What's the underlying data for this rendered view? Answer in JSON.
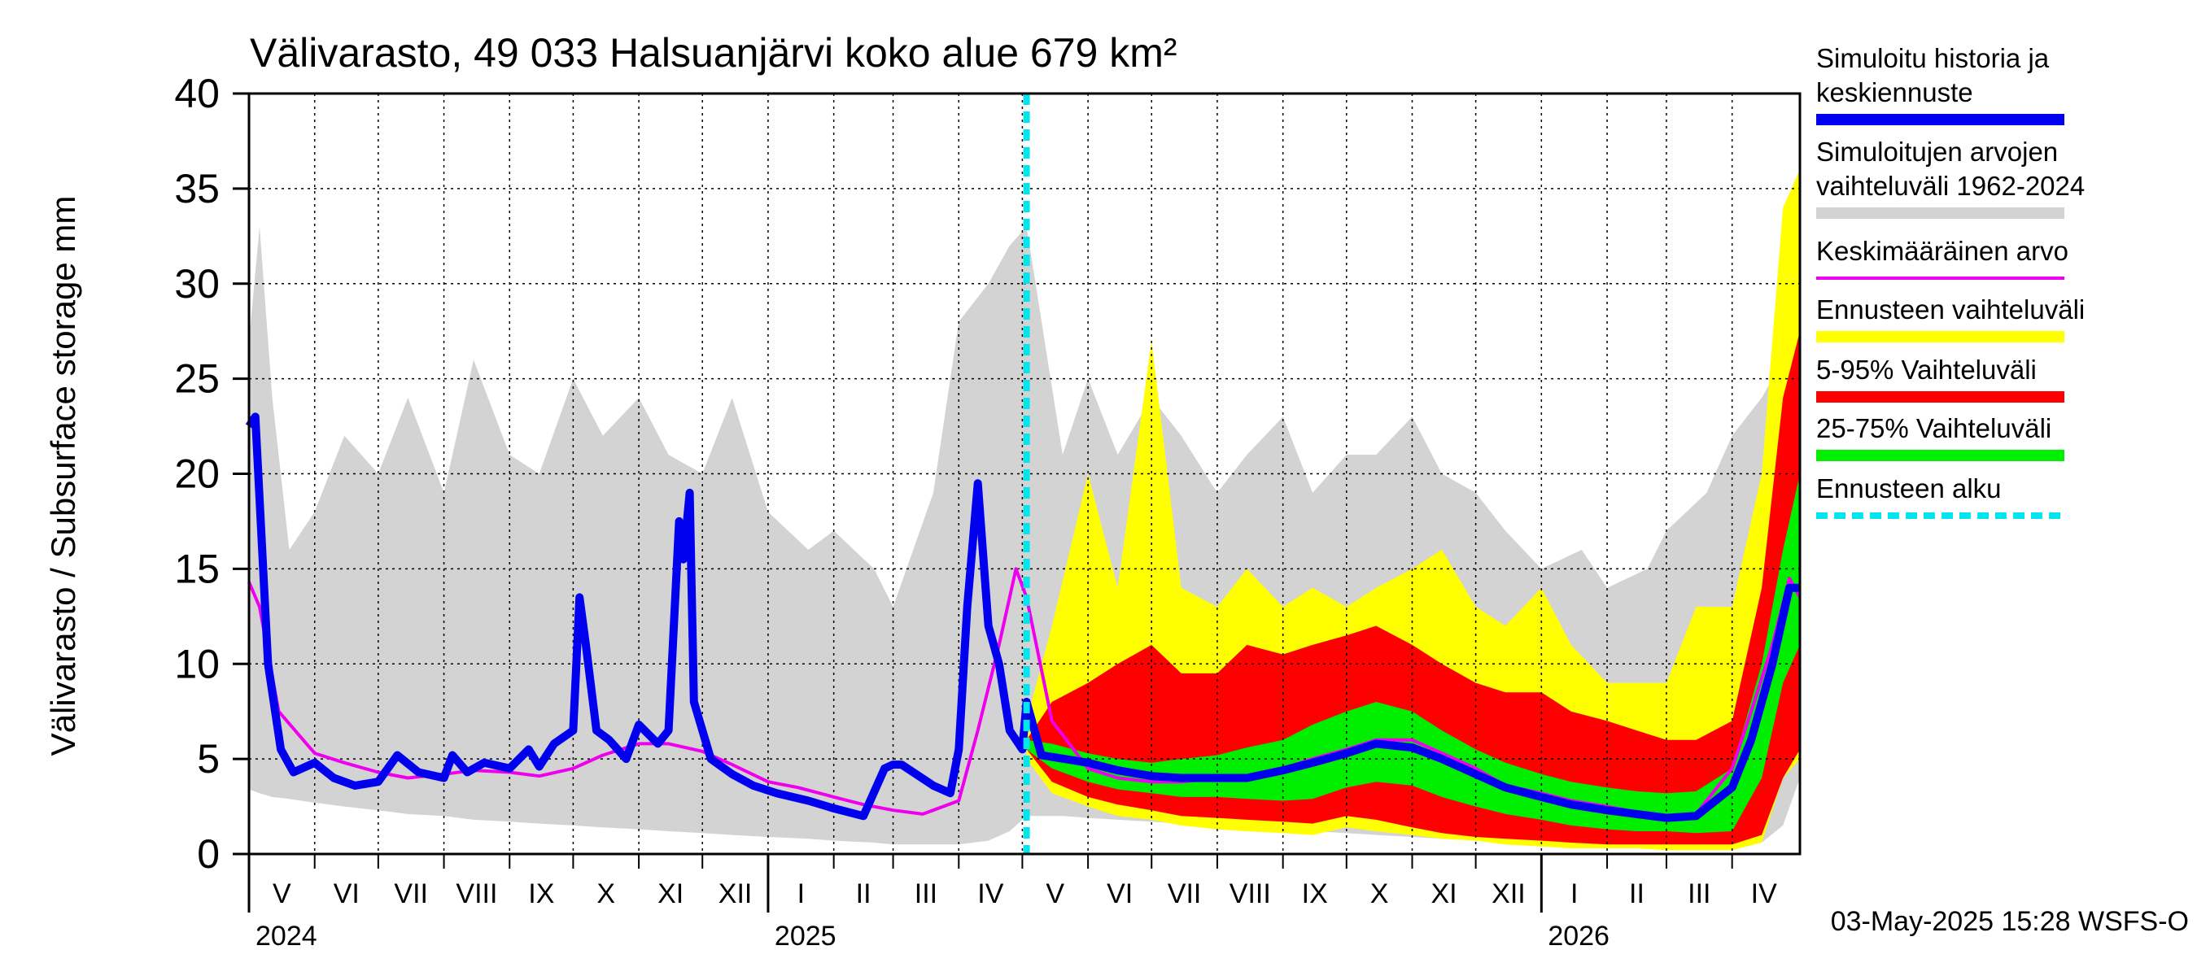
{
  "chart_data": {
    "type": "area",
    "title": "Välivarasto, 49 033 Halsuanjärvi koko alue 679 km²",
    "ylabel": "Välivarasto / Subsurface storage  mm",
    "xlabel": "",
    "ylim": [
      0,
      40
    ],
    "yticks": [
      "0",
      "5",
      "10",
      "15",
      "20",
      "25",
      "30",
      "35",
      "40"
    ],
    "grid": true,
    "legend_position": "right",
    "forecast_start": "2025-05-03",
    "months": [
      {
        "label": "V",
        "start": "2024-05-01",
        "end": "2024-06-01"
      },
      {
        "label": "VI",
        "start": "2024-06-01",
        "end": "2024-07-01"
      },
      {
        "label": "VII",
        "start": "2024-07-01",
        "end": "2024-08-01"
      },
      {
        "label": "VIII",
        "start": "2024-08-01",
        "end": "2024-09-01"
      },
      {
        "label": "IX",
        "start": "2024-09-01",
        "end": "2024-10-01"
      },
      {
        "label": "X",
        "start": "2024-10-01",
        "end": "2024-11-01"
      },
      {
        "label": "XI",
        "start": "2024-11-01",
        "end": "2024-12-01"
      },
      {
        "label": "XII",
        "start": "2024-12-01",
        "end": "2025-01-01"
      },
      {
        "label": "I",
        "start": "2025-01-01",
        "end": "2025-02-01"
      },
      {
        "label": "II",
        "start": "2025-02-01",
        "end": "2025-03-01"
      },
      {
        "label": "III",
        "start": "2025-03-01",
        "end": "2025-04-01"
      },
      {
        "label": "IV",
        "start": "2025-04-01",
        "end": "2025-05-01"
      },
      {
        "label": "V",
        "start": "2025-05-01",
        "end": "2025-06-01"
      },
      {
        "label": "VI",
        "start": "2025-06-01",
        "end": "2025-07-01"
      },
      {
        "label": "VII",
        "start": "2025-07-01",
        "end": "2025-08-01"
      },
      {
        "label": "VIII",
        "start": "2025-08-01",
        "end": "2025-09-01"
      },
      {
        "label": "IX",
        "start": "2025-09-01",
        "end": "2025-10-01"
      },
      {
        "label": "X",
        "start": "2025-10-01",
        "end": "2025-11-01"
      },
      {
        "label": "XI",
        "start": "2025-11-01",
        "end": "2025-12-01"
      },
      {
        "label": "XII",
        "start": "2025-12-01",
        "end": "2026-01-01"
      },
      {
        "label": "I",
        "start": "2026-01-01",
        "end": "2026-02-01"
      },
      {
        "label": "II",
        "start": "2026-02-01",
        "end": "2026-03-01"
      },
      {
        "label": "III",
        "start": "2026-03-01",
        "end": "2026-04-01"
      },
      {
        "label": "IV",
        "start": "2026-04-01",
        "end": "2026-05-01"
      }
    ],
    "years": [
      {
        "label": "2024",
        "date": "2024-05-01"
      },
      {
        "label": "2025",
        "date": "2025-01-01"
      },
      {
        "label": "2026",
        "date": "2026-01-01"
      }
    ],
    "x_end": "2026-05-03",
    "legend": [
      {
        "lines": [
          "Simuloitu historia ja",
          "keskiennuste"
        ],
        "color": "#0000ee",
        "style": "thick"
      },
      {
        "lines": [
          "Simuloitujen arvojen",
          "vaihteluväli 1962-2024"
        ],
        "color": "#d3d3d3",
        "style": "thick"
      },
      {
        "lines": [
          "Keskimääräinen arvo"
        ],
        "color": "#ee00ee",
        "style": "thin"
      },
      {
        "lines": [
          "Ennusteen vaihteluväli"
        ],
        "color": "#ffff00",
        "style": "thick"
      },
      {
        "lines": [
          "5-95% Vaihteluväli"
        ],
        "color": "#ff0000",
        "style": "thick"
      },
      {
        "lines": [
          "25-75% Vaihteluväli"
        ],
        "color": "#00ee00",
        "style": "thick"
      },
      {
        "lines": [
          "Ennusteen alku"
        ],
        "color": "#00e5ee",
        "style": "dashed"
      }
    ],
    "footer": "03-May-2025 15:28 WSFS-O",
    "series": [
      {
        "name": "Simuloitujen arvojen vaihteluväli 1962-2024",
        "kind": "band",
        "color": "#d3d3d3",
        "x": [
          "2024-05-01",
          "2024-05-06",
          "2024-05-12",
          "2024-05-20",
          "2024-06-01",
          "2024-06-15",
          "2024-07-01",
          "2024-07-15",
          "2024-08-01",
          "2024-08-15",
          "2024-09-01",
          "2024-09-15",
          "2024-10-01",
          "2024-10-15",
          "2024-11-01",
          "2024-11-15",
          "2024-12-01",
          "2024-12-15",
          "2025-01-01",
          "2025-01-20",
          "2025-02-01",
          "2025-02-20",
          "2025-03-01",
          "2025-03-20",
          "2025-04-01",
          "2025-04-15",
          "2025-04-25",
          "2025-05-03",
          "2025-05-20",
          "2025-06-01",
          "2025-06-15",
          "2025-07-01",
          "2025-07-15",
          "2025-08-01",
          "2025-08-15",
          "2025-09-01",
          "2025-09-15",
          "2025-10-01",
          "2025-10-15",
          "2025-11-01",
          "2025-11-15",
          "2025-12-01",
          "2025-12-15",
          "2026-01-01",
          "2026-01-20",
          "2026-02-01",
          "2026-02-20",
          "2026-03-01",
          "2026-03-20",
          "2026-04-01",
          "2026-04-15",
          "2026-04-25",
          "2026-05-03"
        ],
        "low": [
          3.4,
          3.2,
          3.0,
          2.9,
          2.7,
          2.5,
          2.3,
          2.1,
          2.0,
          1.8,
          1.7,
          1.6,
          1.5,
          1.4,
          1.3,
          1.2,
          1.1,
          1.0,
          0.9,
          0.8,
          0.7,
          0.6,
          0.5,
          0.5,
          0.5,
          0.7,
          1.2,
          2.0,
          2.0,
          1.9,
          1.8,
          1.7,
          1.6,
          1.5,
          1.4,
          1.3,
          1.2,
          1.1,
          1.0,
          0.9,
          0.8,
          0.8,
          0.7,
          0.6,
          0.5,
          0.5,
          0.4,
          0.4,
          0.4,
          0.4,
          0.6,
          1.5,
          4.0
        ],
        "high": [
          27.0,
          33.0,
          24.0,
          16.0,
          18.0,
          22.0,
          20.0,
          24.0,
          19.0,
          26.0,
          21.0,
          20.0,
          25.0,
          22.0,
          24.0,
          21.0,
          20.0,
          24.0,
          18.0,
          16.0,
          17.0,
          15.0,
          13.0,
          19.0,
          28.0,
          30.0,
          32.0,
          33.0,
          21.0,
          25.0,
          21.0,
          24.0,
          22.0,
          19.0,
          21.0,
          23.0,
          19.0,
          21.0,
          21.0,
          23.0,
          20.0,
          19.0,
          17.0,
          15.0,
          16.0,
          14.0,
          15.0,
          17.0,
          19.0,
          22.0,
          24.0,
          26.0,
          34.0
        ]
      },
      {
        "name": "Ennusteen vaihteluväli",
        "kind": "band",
        "color": "#ffff00",
        "x": [
          "2025-05-03",
          "2025-05-15",
          "2025-06-01",
          "2025-06-15",
          "2025-07-01",
          "2025-07-15",
          "2025-08-01",
          "2025-08-15",
          "2025-09-01",
          "2025-09-15",
          "2025-10-01",
          "2025-10-15",
          "2025-11-01",
          "2025-11-15",
          "2025-12-01",
          "2025-12-15",
          "2026-01-01",
          "2026-01-15",
          "2026-02-01",
          "2026-02-15",
          "2026-03-01",
          "2026-03-15",
          "2026-04-01",
          "2026-04-15",
          "2026-04-25",
          "2026-05-03"
        ],
        "low": [
          5.0,
          3.2,
          2.5,
          2.0,
          1.8,
          1.5,
          1.3,
          1.2,
          1.1,
          1.0,
          1.4,
          1.2,
          1.0,
          0.8,
          0.7,
          0.5,
          0.4,
          0.3,
          0.3,
          0.3,
          0.2,
          0.2,
          0.2,
          0.6,
          4.0,
          5.0
        ],
        "high": [
          7.0,
          12.0,
          20.0,
          14.0,
          27.0,
          14.0,
          13.0,
          15.0,
          13.0,
          14.0,
          13.0,
          14.0,
          15.0,
          16.0,
          13.0,
          12.0,
          14.0,
          11.0,
          9.0,
          9.0,
          9.0,
          13.0,
          13.0,
          20.0,
          34.0,
          36.0
        ]
      },
      {
        "name": "5-95% Vaihteluväli",
        "kind": "band",
        "color": "#ff0000",
        "x": [
          "2025-05-03",
          "2025-05-15",
          "2025-06-01",
          "2025-06-15",
          "2025-07-01",
          "2025-07-15",
          "2025-08-01",
          "2025-08-15",
          "2025-09-01",
          "2025-09-15",
          "2025-10-01",
          "2025-10-15",
          "2025-11-01",
          "2025-11-15",
          "2025-12-01",
          "2025-12-15",
          "2026-01-01",
          "2026-01-15",
          "2026-02-01",
          "2026-02-15",
          "2026-03-01",
          "2026-03-15",
          "2026-04-01",
          "2026-04-15",
          "2026-04-25",
          "2026-05-03"
        ],
        "low": [
          5.5,
          3.8,
          3.0,
          2.6,
          2.3,
          2.0,
          1.9,
          1.8,
          1.7,
          1.6,
          2.0,
          1.8,
          1.4,
          1.1,
          0.9,
          0.8,
          0.7,
          0.6,
          0.5,
          0.5,
          0.5,
          0.5,
          0.5,
          1.0,
          4.0,
          5.5
        ],
        "high": [
          6.0,
          8.0,
          9.0,
          10.0,
          11.0,
          9.5,
          9.5,
          11.0,
          10.5,
          11.0,
          11.5,
          12.0,
          11.0,
          10.0,
          9.0,
          8.5,
          8.5,
          7.5,
          7.0,
          6.5,
          6.0,
          6.0,
          7.0,
          14.0,
          24.0,
          27.5
        ]
      },
      {
        "name": "25-75% Vaihteluväli",
        "kind": "band",
        "color": "#00ee00",
        "x": [
          "2025-05-03",
          "2025-05-15",
          "2025-06-01",
          "2025-06-15",
          "2025-07-01",
          "2025-07-15",
          "2025-08-01",
          "2025-08-15",
          "2025-09-01",
          "2025-09-15",
          "2025-10-01",
          "2025-10-15",
          "2025-11-01",
          "2025-11-15",
          "2025-12-01",
          "2025-12-15",
          "2026-01-01",
          "2026-01-15",
          "2026-02-01",
          "2026-02-15",
          "2026-03-01",
          "2026-03-15",
          "2026-04-01",
          "2026-04-15",
          "2026-04-25",
          "2026-05-03"
        ],
        "low": [
          5.5,
          4.5,
          3.8,
          3.4,
          3.2,
          3.0,
          3.0,
          2.9,
          2.8,
          2.9,
          3.5,
          3.8,
          3.6,
          3.0,
          2.5,
          2.1,
          1.8,
          1.5,
          1.3,
          1.2,
          1.2,
          1.1,
          1.2,
          4.0,
          9.0,
          11.0
        ],
        "high": [
          6.0,
          5.8,
          5.3,
          5.0,
          4.8,
          5.0,
          5.2,
          5.6,
          6.0,
          6.8,
          7.5,
          8.0,
          7.5,
          6.5,
          5.5,
          4.8,
          4.2,
          3.8,
          3.5,
          3.3,
          3.2,
          3.3,
          4.5,
          10.0,
          16.0,
          20.0
        ]
      },
      {
        "name": "Keskimääräinen arvo",
        "kind": "line",
        "color": "#ee00ee",
        "width": 4,
        "x": [
          "2024-05-01",
          "2024-05-06",
          "2024-05-15",
          "2024-06-01",
          "2024-06-15",
          "2024-07-01",
          "2024-07-15",
          "2024-08-01",
          "2024-08-15",
          "2024-09-01",
          "2024-09-15",
          "2024-10-01",
          "2024-10-15",
          "2024-11-01",
          "2024-11-15",
          "2024-12-01",
          "2024-12-15",
          "2025-01-01",
          "2025-01-15",
          "2025-02-01",
          "2025-02-15",
          "2025-03-01",
          "2025-03-15",
          "2025-04-01",
          "2025-04-10",
          "2025-04-20",
          "2025-04-28",
          "2025-05-03",
          "2025-05-15",
          "2025-06-01",
          "2025-06-15",
          "2025-07-01",
          "2025-07-15",
          "2025-08-01",
          "2025-08-15",
          "2025-09-01",
          "2025-09-15",
          "2025-10-01",
          "2025-10-15",
          "2025-11-01",
          "2025-11-15",
          "2025-12-01",
          "2025-12-15",
          "2026-01-01",
          "2026-01-15",
          "2026-02-01",
          "2026-02-15",
          "2026-03-01",
          "2026-03-15",
          "2026-04-01",
          "2026-04-10",
          "2026-04-20",
          "2026-04-28",
          "2026-05-03"
        ],
        "y": [
          14.3,
          13.0,
          7.5,
          5.3,
          4.8,
          4.3,
          4.0,
          4.2,
          4.4,
          4.3,
          4.1,
          4.5,
          5.2,
          5.8,
          5.8,
          5.4,
          4.7,
          3.8,
          3.5,
          3.0,
          2.6,
          2.3,
          2.1,
          2.8,
          6.5,
          11.0,
          15.0,
          13.5,
          7.0,
          4.5,
          4.0,
          3.8,
          3.8,
          4.0,
          4.0,
          4.5,
          5.0,
          5.5,
          6.0,
          6.0,
          5.3,
          4.5,
          3.6,
          3.2,
          2.8,
          2.5,
          2.2,
          2.0,
          2.1,
          4.5,
          7.5,
          11.0,
          14.5,
          13.5
        ]
      },
      {
        "name": "Simuloitu historia ja keskiennuste",
        "kind": "line",
        "color": "#0000ee",
        "width": 10,
        "x": [
          "2024-05-01",
          "2024-05-04",
          "2024-05-10",
          "2024-05-16",
          "2024-05-22",
          "2024-06-01",
          "2024-06-10",
          "2024-06-20",
          "2024-07-01",
          "2024-07-10",
          "2024-07-20",
          "2024-08-01",
          "2024-08-05",
          "2024-08-12",
          "2024-08-20",
          "2024-09-01",
          "2024-09-10",
          "2024-09-15",
          "2024-09-22",
          "2024-10-01",
          "2024-10-04",
          "2024-10-07",
          "2024-10-12",
          "2024-10-18",
          "2024-10-26",
          "2024-11-01",
          "2024-11-10",
          "2024-11-15",
          "2024-11-20",
          "2024-11-22",
          "2024-11-25",
          "2024-11-27",
          "2024-12-05",
          "2024-12-15",
          "2024-12-25",
          "2025-01-05",
          "2025-01-20",
          "2025-02-01",
          "2025-02-15",
          "2025-02-25",
          "2025-03-01",
          "2025-03-05",
          "2025-03-20",
          "2025-03-28",
          "2025-04-01",
          "2025-04-05",
          "2025-04-10",
          "2025-04-15",
          "2025-04-20",
          "2025-04-25",
          "2025-05-01",
          "2025-05-03",
          "2025-05-10",
          "2025-06-01",
          "2025-06-15",
          "2025-07-01",
          "2025-07-15",
          "2025-08-01",
          "2025-08-15",
          "2025-09-01",
          "2025-09-15",
          "2025-10-01",
          "2025-10-15",
          "2025-11-01",
          "2025-11-15",
          "2025-12-01",
          "2025-12-15",
          "2026-01-01",
          "2026-01-15",
          "2026-02-01",
          "2026-02-15",
          "2026-03-01",
          "2026-03-15",
          "2026-04-01",
          "2026-04-10",
          "2026-04-20",
          "2026-04-28",
          "2026-05-03"
        ],
        "y": [
          22.5,
          23.0,
          10.0,
          5.5,
          4.3,
          4.8,
          4.0,
          3.6,
          3.8,
          5.2,
          4.3,
          4.0,
          5.2,
          4.3,
          4.8,
          4.5,
          5.5,
          4.6,
          5.8,
          6.5,
          13.5,
          11.0,
          6.5,
          6.0,
          5.0,
          6.8,
          5.8,
          6.5,
          17.5,
          15.5,
          19.0,
          8.0,
          5.0,
          4.2,
          3.6,
          3.2,
          2.8,
          2.4,
          2.0,
          4.5,
          4.7,
          4.7,
          3.6,
          3.2,
          5.5,
          13.0,
          19.5,
          12.0,
          10.0,
          6.5,
          5.5,
          8.0,
          5.2,
          4.8,
          4.4,
          4.1,
          4.0,
          4.0,
          4.0,
          4.4,
          4.8,
          5.3,
          5.8,
          5.6,
          5.0,
          4.2,
          3.5,
          3.0,
          2.6,
          2.3,
          2.1,
          1.9,
          2.0,
          3.5,
          6.0,
          10.0,
          14.0,
          14.0
        ]
      }
    ]
  }
}
